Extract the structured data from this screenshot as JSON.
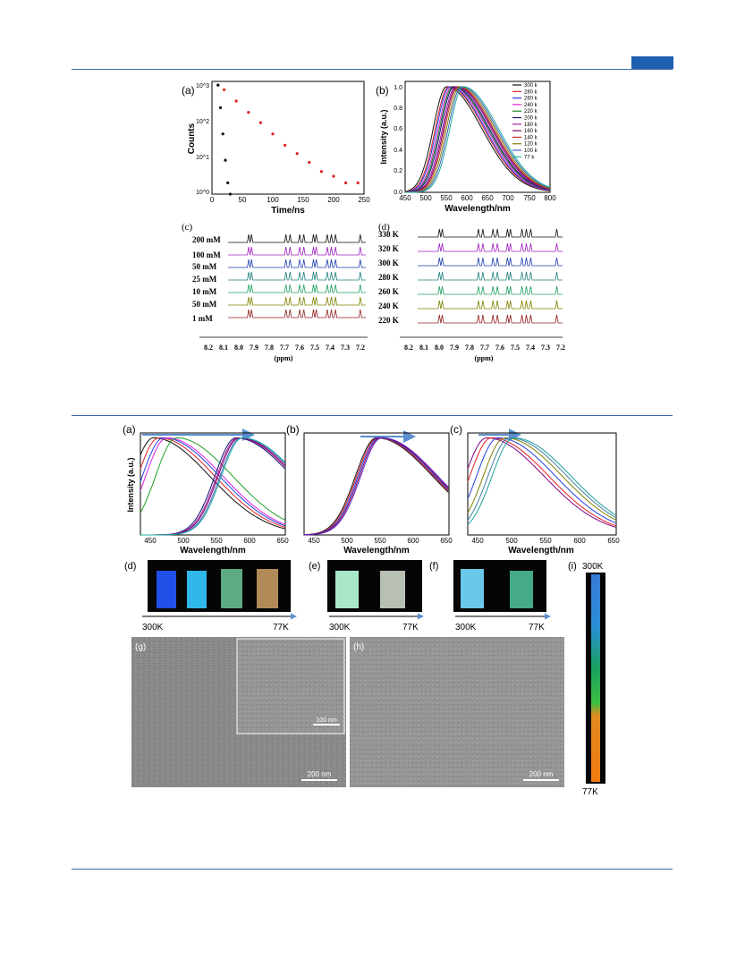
{
  "page": {
    "accent": "#1f5fb0",
    "rule_color": "#3d6aa8"
  },
  "figure1": {
    "panel_a": {
      "label": "(a)",
      "xlabel": "Time/ns",
      "ylabel": "Counts",
      "xticks": [
        "0",
        "50",
        "100",
        "150",
        "200",
        "250"
      ],
      "yticks": [
        "10^0",
        "10^1",
        "10^2",
        "10^3"
      ]
    },
    "panel_b": {
      "label": "(b)",
      "xlabel": "Wavelength/nm",
      "ylabel": "Intensity (a.u.)",
      "xticks": [
        "450",
        "500",
        "550",
        "600",
        "650",
        "700",
        "750",
        "800"
      ],
      "yticks": [
        "0.0",
        "0.2",
        "0.4",
        "0.6",
        "0.8",
        "1.0"
      ],
      "legend": [
        "300 k",
        "280 k",
        "260 k",
        "240 k",
        "220 k",
        "200 k",
        "180 k",
        "160 k",
        "140 k",
        "120 k",
        "100 k",
        "77 k"
      ]
    },
    "panel_c": {
      "label": "(c)",
      "xlabel": "(ppm)",
      "trace_labels": [
        "200 mM",
        "100 mM",
        "50 mM",
        "25 mM",
        "10 mM",
        "50 mM",
        "1 mM"
      ],
      "xticks": [
        "8.2",
        "8.1",
        "8.0",
        "7.9",
        "7.8",
        "7.7",
        "7.6",
        "7.5",
        "7.4",
        "7.3",
        "7.2"
      ]
    },
    "panel_d": {
      "label": "(d)",
      "xlabel": "(ppm)",
      "trace_labels": [
        "330 K",
        "320 K",
        "300 K",
        "280 K",
        "260 K",
        "240 K",
        "220 K"
      ],
      "xticks": [
        "8.2",
        "8.1",
        "8.0",
        "7.9",
        "7.8",
        "7.7",
        "7.6",
        "7.5",
        "7.4",
        "7.3",
        "7.2"
      ]
    }
  },
  "figure2": {
    "panel_a": {
      "label": "(a)",
      "xlabel": "Wavelength/nm",
      "ylabel": "Intensity (a.u.)",
      "xticks": [
        "450",
        "500",
        "550",
        "600",
        "650"
      ]
    },
    "panel_b": {
      "label": "(b)",
      "xlabel": "Wavelength/nm",
      "xticks": [
        "450",
        "500",
        "550",
        "600",
        "650"
      ]
    },
    "panel_c": {
      "label": "(c)",
      "xlabel": "Wavelength/nm",
      "xticks": [
        "450",
        "500",
        "550",
        "600",
        "650"
      ]
    },
    "panel_d": {
      "label": "(d)",
      "start": "300K",
      "end": "77K"
    },
    "panel_e": {
      "label": "(e)",
      "start": "300K",
      "end": "77K"
    },
    "panel_f": {
      "label": "(f)",
      "start": "300K",
      "end": "77K"
    },
    "panel_g": {
      "label": "(g)",
      "scale": "200 nm",
      "inset_scale": "100 nm"
    },
    "panel_h": {
      "label": "(h)",
      "scale": "200 nm"
    },
    "panel_i": {
      "label": "(i)",
      "top": "300K",
      "bottom": "77K"
    }
  },
  "chart_data": [
    {
      "type": "scatter",
      "panel": "fig1-a",
      "log_y": true,
      "xlim": [
        0,
        250
      ],
      "ylim": [
        1,
        1000
      ],
      "xlabel": "Time/ns",
      "ylabel": "Counts",
      "series": [
        {
          "color": "#e02020",
          "x": [
            10,
            20,
            40,
            60,
            80,
            100,
            120,
            140,
            160,
            180,
            200,
            220,
            240
          ],
          "y": [
            800,
            600,
            300,
            150,
            80,
            40,
            20,
            12,
            7,
            4,
            3,
            2,
            2
          ]
        },
        {
          "color": "#111111",
          "x": [
            10,
            14,
            18,
            22,
            26,
            30
          ],
          "y": [
            800,
            200,
            40,
            8,
            2,
            1
          ]
        }
      ]
    },
    {
      "type": "line",
      "panel": "fig1-b",
      "xlim": [
        450,
        800
      ],
      "ylim": [
        0,
        1.05
      ],
      "xlabel": "Wavelength/nm",
      "ylabel": "Intensity (a.u.)",
      "series": [
        {
          "name": "300 k",
          "peak": 550,
          "color": "#111111"
        },
        {
          "name": "280 k",
          "peak": 555,
          "color": "#e02020"
        },
        {
          "name": "260 k",
          "peak": 558,
          "color": "#2040e0"
        },
        {
          "name": "240 k",
          "peak": 562,
          "color": "#e020e0"
        },
        {
          "name": "220 k",
          "peak": 565,
          "color": "#208020"
        },
        {
          "name": "200 k",
          "peak": 568,
          "color": "#101070"
        },
        {
          "name": "180 k",
          "peak": 572,
          "color": "#a020a0"
        },
        {
          "name": "160 k",
          "peak": 575,
          "color": "#800060"
        },
        {
          "name": "140 k",
          "peak": 578,
          "color": "#c03030"
        },
        {
          "name": "120 k",
          "peak": 582,
          "color": "#808000"
        },
        {
          "name": "100 k",
          "peak": 586,
          "color": "#4060c0"
        },
        {
          "name": "77 k",
          "peak": 590,
          "color": "#20b0a0"
        }
      ]
    },
    {
      "type": "line",
      "panel": "fig2-a",
      "xlim": [
        430,
        650
      ],
      "ylim": [
        0,
        1.05
      ],
      "series": [
        {
          "peak": 450,
          "color": "#111111"
        },
        {
          "peak": 458,
          "color": "#e02020"
        },
        {
          "peak": 465,
          "color": "#2040e0"
        },
        {
          "peak": 470,
          "color": "#e020e0"
        },
        {
          "peak": 485,
          "color": "#20a020"
        },
        {
          "peak": 575,
          "color": "#101070"
        },
        {
          "peak": 578,
          "color": "#a020a0"
        },
        {
          "peak": 580,
          "color": "#800060"
        },
        {
          "peak": 583,
          "color": "#4060c0"
        },
        {
          "peak": 585,
          "color": "#20b0a0"
        }
      ]
    },
    {
      "type": "line",
      "panel": "fig2-b",
      "xlim": [
        430,
        650
      ],
      "ylim": [
        0,
        1.05
      ],
      "series": [
        {
          "peak": 540,
          "color": "#111111"
        },
        {
          "peak": 542,
          "color": "#e02020"
        },
        {
          "peak": 544,
          "color": "#2040e0"
        },
        {
          "peak": 546,
          "color": "#800060"
        },
        {
          "peak": 548,
          "color": "#6020c0"
        }
      ]
    },
    {
      "type": "line",
      "panel": "fig2-c",
      "xlim": [
        430,
        650
      ],
      "ylim": [
        0,
        1.05
      ],
      "series": [
        {
          "peak": 458,
          "color": "#800080"
        },
        {
          "peak": 465,
          "color": "#e02020"
        },
        {
          "peak": 475,
          "color": "#2040e0"
        },
        {
          "peak": 485,
          "color": "#808000"
        },
        {
          "peak": 492,
          "color": "#4080a0"
        },
        {
          "peak": 498,
          "color": "#20a0a0"
        }
      ]
    }
  ]
}
